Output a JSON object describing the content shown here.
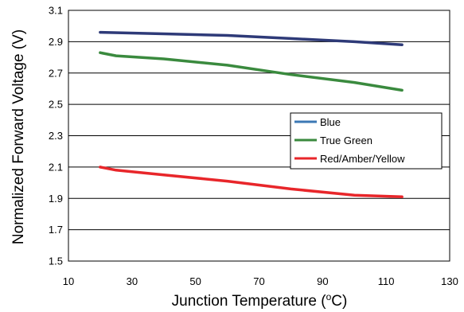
{
  "chart_data": {
    "type": "line",
    "xlabel": "Junction Temperature (",
    "xlabel_unit": "°C)",
    "ylabel": "Normalized Forward Voltage (V)",
    "xlim": [
      10,
      130
    ],
    "ylim": [
      1.5,
      3.1
    ],
    "x_ticks": [
      "10",
      "30",
      "50",
      "70",
      "90",
      "110",
      "130"
    ],
    "y_ticks": [
      "1.5",
      "1.7",
      "1.9",
      "2.1",
      "2.3",
      "2.5",
      "2.7",
      "2.9",
      "3.1"
    ],
    "grid": "horizontal",
    "legend_position": "right-middle",
    "series": [
      {
        "name": "Blue",
        "color": "#2e3a78",
        "legend_color": "#3c78b4",
        "x": [
          20,
          40,
          60,
          80,
          100,
          115
        ],
        "y": [
          2.96,
          2.95,
          2.94,
          2.92,
          2.9,
          2.88
        ]
      },
      {
        "name": "True Green",
        "color": "#3a8a3e",
        "legend_color": "#3a8a3e",
        "x": [
          20,
          25,
          40,
          60,
          80,
          100,
          115
        ],
        "y": [
          2.83,
          2.81,
          2.79,
          2.75,
          2.69,
          2.64,
          2.59
        ]
      },
      {
        "name": "Red/Amber/Yellow",
        "color": "#e8262a",
        "legend_color": "#e8262a",
        "x": [
          20,
          25,
          40,
          60,
          80,
          100,
          115
        ],
        "y": [
          2.1,
          2.08,
          2.05,
          2.01,
          1.96,
          1.92,
          1.91
        ]
      }
    ]
  }
}
